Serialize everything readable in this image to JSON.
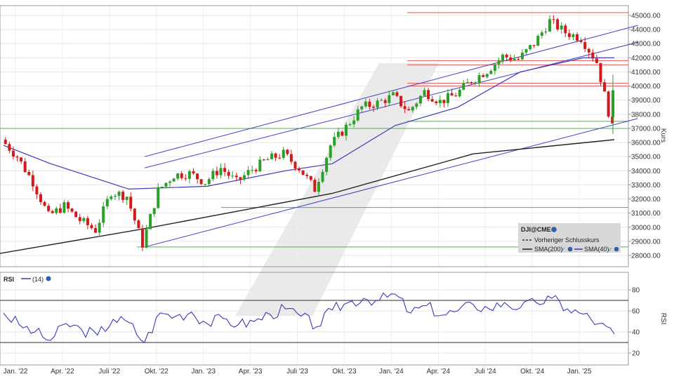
{
  "chart_data": [
    {
      "type": "candlestick",
      "instrument": "DJI@CME",
      "ylabel": "Kurs",
      "ylim": [
        28000,
        45000
      ],
      "y_ticks": [
        "28000.00",
        "29000.00",
        "30000.00",
        "31000.00",
        "32000.00",
        "33000.00",
        "34000.00",
        "35000.00",
        "36000.00",
        "37000.00",
        "38000.00",
        "39000.00",
        "40000.00",
        "41000.00",
        "42000.00",
        "43000.00",
        "44000.00",
        "45000.00"
      ],
      "x_ticks": [
        "Jan. '22",
        "Apr. '22",
        "Juli '22",
        "Okt. '22",
        "Jan. '23",
        "Apr. '23",
        "Juli '23",
        "Okt. '23",
        "Jan. '24",
        "Apr. '24",
        "Juli '24",
        "Okt. '24",
        "Jan. '25"
      ],
      "x_tick_positions": [
        0,
        3,
        6,
        9,
        12,
        15,
        18,
        21,
        24,
        27,
        30,
        33,
        36
      ],
      "close_weeks": [
        0,
        1,
        2,
        3,
        4,
        5,
        6,
        7,
        8,
        9,
        10,
        11,
        12,
        13,
        14,
        15,
        16,
        17,
        18,
        19,
        20,
        21,
        22,
        23,
        24,
        25,
        26,
        27,
        28,
        29,
        30,
        31,
        32,
        33,
        34,
        35,
        36,
        37,
        38,
        39
      ],
      "close_path": [
        36200,
        35000,
        33200,
        30800,
        31500,
        30500,
        29800,
        32500,
        32200,
        28800,
        32600,
        33700,
        33800,
        33200,
        34200,
        33200,
        34100,
        34800,
        35200,
        34200,
        32700,
        35800,
        37100,
        38500,
        38800,
        39300,
        38200,
        39600,
        38900,
        39400,
        40400,
        41100,
        42100,
        41900,
        43000,
        44600,
        43800,
        43400,
        41700,
        37000
      ],
      "last_candle": {
        "open": 37800,
        "close": 39700,
        "high": 40800,
        "low": 36600
      },
      "sma200": {
        "x": [
          -1,
          9,
          21,
          30,
          39
        ],
        "values": [
          28000,
          29900,
          32400,
          35200,
          36200
        ]
      },
      "sma40": {
        "x": [
          0,
          3,
          8,
          13,
          18,
          21,
          25,
          29,
          33,
          37,
          39
        ],
        "values": [
          35800,
          34500,
          32700,
          32900,
          34000,
          34500,
          37200,
          38500,
          41000,
          42000,
          42000
        ]
      },
      "horizontal_levels": {
        "red": [
          45200,
          41800,
          41500,
          40200,
          40000
        ],
        "green": [
          37000,
          37500,
          31400,
          28600
        ]
      },
      "trend_lines": [
        {
          "from": [
            9,
            35000
          ],
          "to": [
            40.5,
            44300
          ]
        },
        {
          "from": [
            9,
            34200
          ],
          "to": [
            40.5,
            43100
          ]
        },
        {
          "from": [
            9,
            28600
          ],
          "to": [
            40.5,
            37700
          ]
        }
      ],
      "legend": {
        "title": "DJI@CME",
        "items": [
          "Vorheriger Schlusskurs",
          "SMA(200)",
          "SMA(40)"
        ],
        "colors": {
          "previous_close": "#333333",
          "sma200": "#222222",
          "sma40": "#3a3ab8"
        }
      },
      "colors": {
        "up": "#2aa02a",
        "down": "#d11a1a",
        "red_level": "#e05555",
        "green_level": "#55aa55",
        "trend": "#4040c0"
      }
    },
    {
      "type": "line",
      "indicator": "RSI",
      "period_label": "(14)",
      "ylabel": "RSI",
      "ylim": [
        10,
        90
      ],
      "y_ticks": [
        "20",
        "40",
        "60",
        "80"
      ],
      "bands": [
        70,
        30
      ],
      "x": [
        0,
        1,
        2,
        3,
        4,
        5,
        6,
        7,
        8,
        9,
        10,
        11,
        12,
        13,
        14,
        15,
        16,
        17,
        18,
        19,
        20,
        21,
        22,
        23,
        24,
        25,
        26,
        27,
        28,
        29,
        30,
        31,
        32,
        33,
        34,
        35,
        36,
        37,
        38,
        39
      ],
      "values": [
        58,
        47,
        40,
        32,
        48,
        42,
        37,
        52,
        49,
        30,
        58,
        55,
        59,
        48,
        53,
        47,
        50,
        57,
        62,
        55,
        45,
        61,
        68,
        72,
        70,
        76,
        58,
        65,
        56,
        60,
        66,
        62,
        68,
        63,
        68,
        72,
        62,
        57,
        48,
        38
      ],
      "line_color": "#3a3ab8"
    }
  ]
}
